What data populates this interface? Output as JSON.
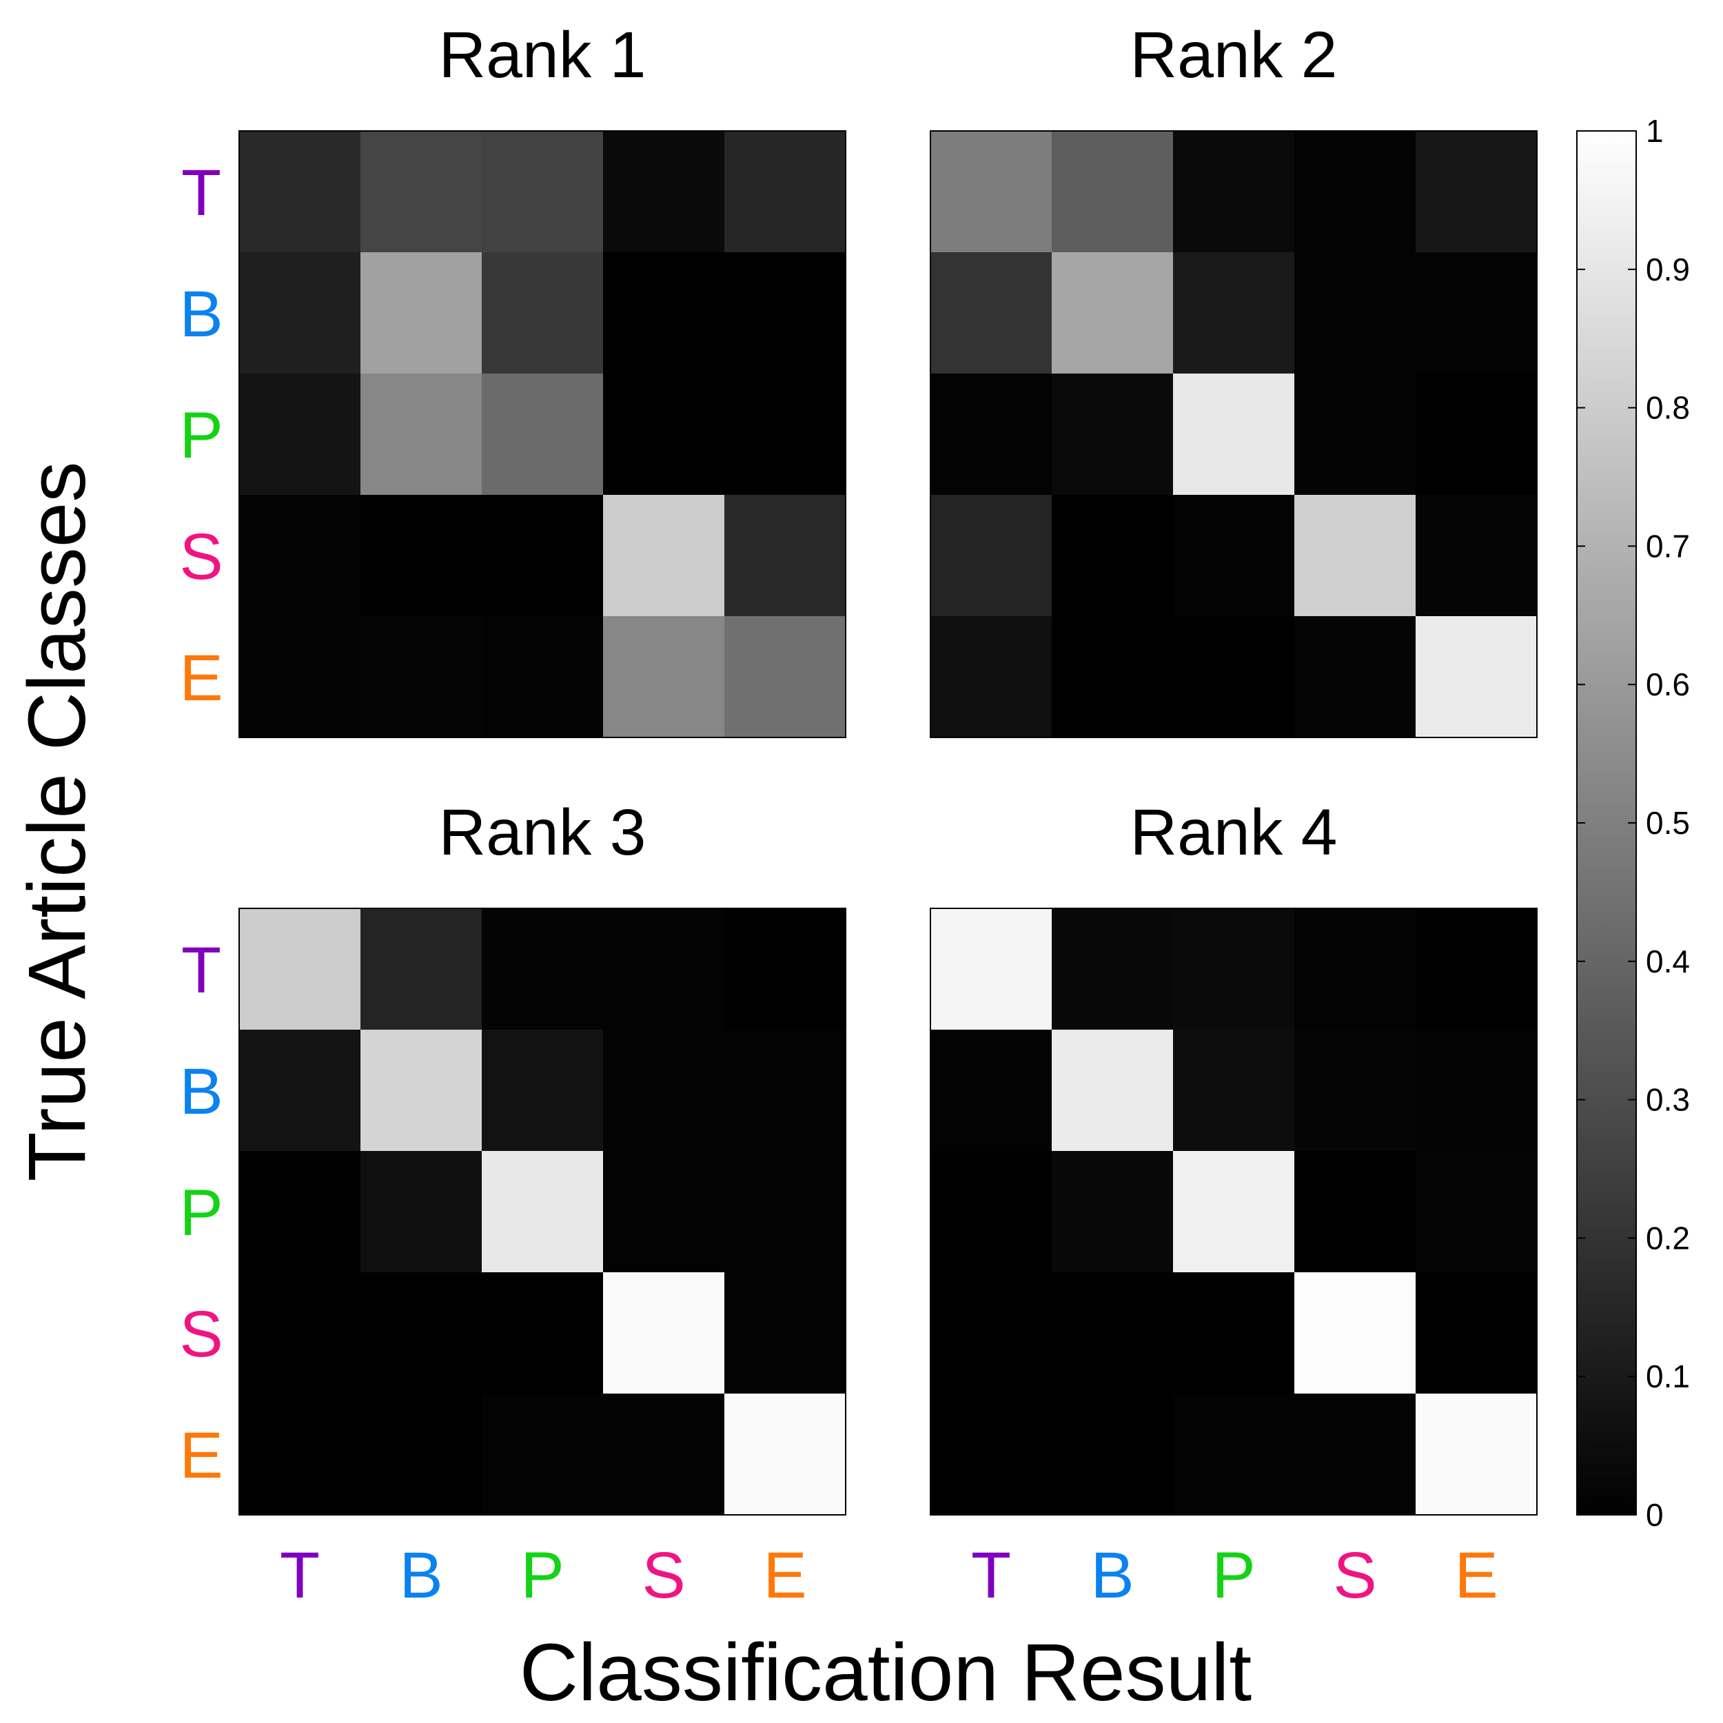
{
  "chart_data": {
    "type": "heatmap",
    "xlabel": "Classification Result",
    "ylabel": "True Article Classes",
    "classes": [
      {
        "label": "T",
        "color": "#8000c0"
      },
      {
        "label": "B",
        "color": "#0a82f0"
      },
      {
        "label": "P",
        "color": "#14d214"
      },
      {
        "label": "S",
        "color": "#f01482"
      },
      {
        "label": "E",
        "color": "#ff780a"
      }
    ],
    "colorbar": {
      "min": 0,
      "max": 1,
      "colormap": "gray",
      "ticks": [
        0,
        0.1,
        0.2,
        0.3,
        0.4,
        0.5,
        0.6,
        0.7,
        0.8,
        0.9,
        1
      ],
      "tick_labels": [
        "0",
        "0.1",
        "0.2",
        "0.3",
        "0.4",
        "0.5",
        "0.6",
        "0.7",
        "0.8",
        "0.9",
        "1"
      ]
    },
    "panels": [
      {
        "title": "Rank 1",
        "matrix": [
          [
            0.16,
            0.27,
            0.26,
            0.04,
            0.15
          ],
          [
            0.12,
            0.63,
            0.22,
            0.0,
            0.0
          ],
          [
            0.08,
            0.53,
            0.42,
            0.0,
            0.0
          ],
          [
            0.01,
            0.0,
            0.0,
            0.8,
            0.16
          ],
          [
            0.01,
            0.02,
            0.01,
            0.53,
            0.44
          ]
        ]
      },
      {
        "title": "Rank 2",
        "matrix": [
          [
            0.49,
            0.37,
            0.04,
            0.01,
            0.09
          ],
          [
            0.2,
            0.65,
            0.1,
            0.01,
            0.01
          ],
          [
            0.01,
            0.04,
            0.91,
            0.01,
            0.0
          ],
          [
            0.14,
            0.0,
            0.01,
            0.81,
            0.02
          ],
          [
            0.06,
            0.0,
            0.0,
            0.02,
            0.92
          ]
        ]
      },
      {
        "title": "Rank 3",
        "matrix": [
          [
            0.8,
            0.14,
            0.01,
            0.01,
            0.0
          ],
          [
            0.08,
            0.83,
            0.07,
            0.01,
            0.01
          ],
          [
            0.0,
            0.06,
            0.91,
            0.01,
            0.01
          ],
          [
            0.0,
            0.0,
            0.0,
            0.98,
            0.01
          ],
          [
            0.0,
            0.0,
            0.01,
            0.01,
            0.98
          ]
        ]
      },
      {
        "title": "Rank 4",
        "matrix": [
          [
            0.96,
            0.03,
            0.04,
            0.01,
            0.0
          ],
          [
            0.01,
            0.92,
            0.05,
            0.02,
            0.01
          ],
          [
            0.0,
            0.03,
            0.94,
            0.0,
            0.02
          ],
          [
            0.0,
            0.0,
            0.0,
            0.99,
            0.0
          ],
          [
            0.0,
            0.0,
            0.01,
            0.01,
            0.98
          ]
        ]
      }
    ]
  }
}
